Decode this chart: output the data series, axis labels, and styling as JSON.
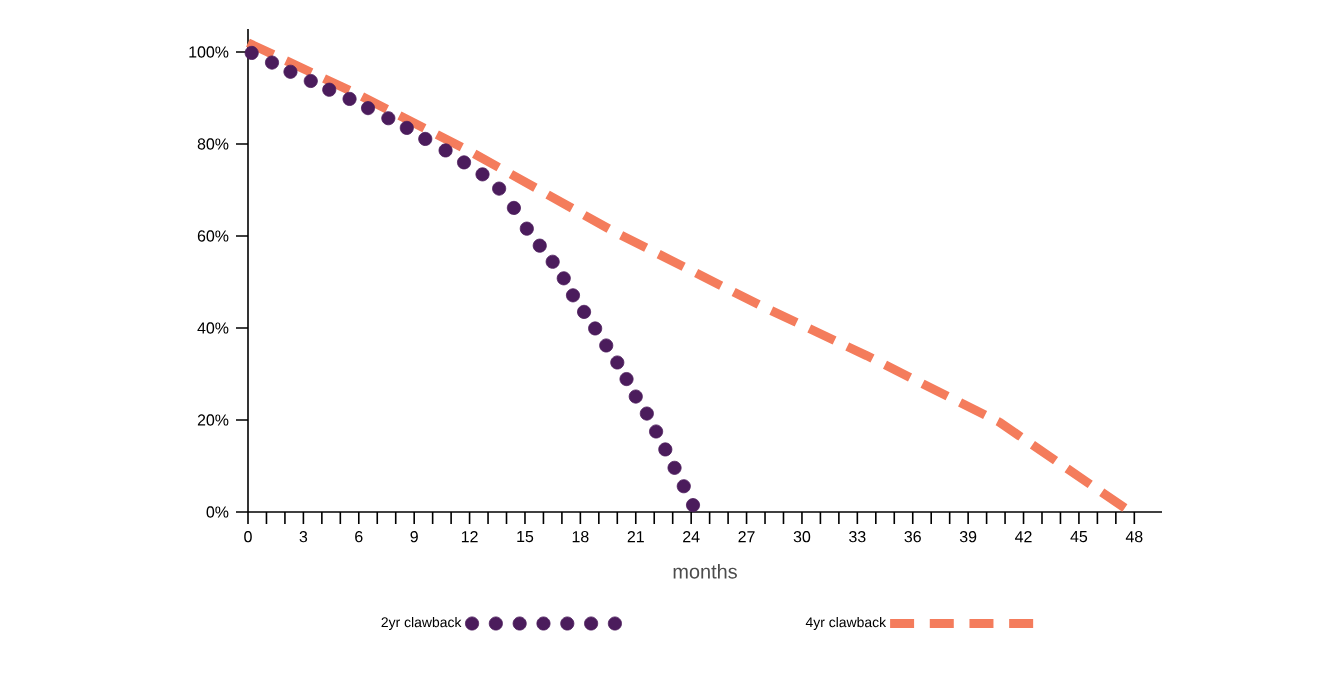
{
  "chart_data": {
    "type": "line",
    "xlabel": "months",
    "xlim": [
      0,
      49.5
    ],
    "ylim": [
      0,
      105
    ],
    "legend": "bottom",
    "xticks": [
      0,
      {
        "value": 1,
        "label": null
      },
      {
        "value": 2,
        "label": null
      },
      3,
      {
        "value": 4,
        "label": null
      },
      {
        "value": 5,
        "label": null
      },
      6,
      {
        "value": 7,
        "label": null
      },
      {
        "value": 8,
        "label": null
      },
      9,
      {
        "value": 10,
        "label": null
      },
      {
        "value": 11,
        "label": null
      },
      12,
      {
        "value": 13,
        "label": null
      },
      {
        "value": 14,
        "label": null
      },
      15,
      {
        "value": 16,
        "label": null
      },
      {
        "value": 17,
        "label": null
      },
      18,
      {
        "value": 19,
        "label": null
      },
      {
        "value": 20,
        "label": null
      },
      21,
      {
        "value": 22,
        "label": null
      },
      {
        "value": 23,
        "label": null
      },
      24,
      {
        "value": 25,
        "label": null
      },
      {
        "value": 26,
        "label": null
      },
      27,
      {
        "value": 28,
        "label": null
      },
      {
        "value": 29,
        "label": null
      },
      30,
      {
        "value": 31,
        "label": null
      },
      {
        "value": 32,
        "label": null
      },
      33,
      {
        "value": 34,
        "label": null
      },
      {
        "value": 35,
        "label": null
      },
      36,
      {
        "value": 37,
        "label": null
      },
      {
        "value": 38,
        "label": null
      },
      39,
      {
        "value": 40,
        "label": null
      },
      {
        "value": 41,
        "label": null
      },
      42,
      {
        "value": 43,
        "label": null
      },
      {
        "value": 44,
        "label": null
      },
      45,
      {
        "value": 46,
        "label": null
      },
      {
        "value": 47,
        "label": null
      },
      48
    ],
    "yticks": [
      {
        "value": 0,
        "label": "0%"
      },
      {
        "value": 20,
        "label": "20%"
      },
      {
        "value": 40,
        "label": "40%"
      },
      {
        "value": 60,
        "label": "60%"
      },
      {
        "value": 80,
        "label": "80%"
      },
      {
        "value": 100,
        "label": "100%"
      }
    ],
    "series": [
      {
        "name": "2yr clawback",
        "type": "scatter",
        "marker": "circle",
        "color": "#4b1c5c",
        "x": [
          0.2,
          1.3,
          2.3,
          3.4,
          4.4,
          5.5,
          6.5,
          7.6,
          8.6,
          9.6,
          10.7,
          11.7,
          12.7,
          13.6,
          14.4,
          15.1,
          15.8,
          16.5,
          17.1,
          17.6,
          18.2,
          18.8,
          19.4,
          20.0,
          20.5,
          21.0,
          21.6,
          22.1,
          22.6,
          23.1,
          23.6,
          24.1
        ],
        "values": [
          99.8,
          97.7,
          95.7,
          93.7,
          91.8,
          89.8,
          87.8,
          85.6,
          83.5,
          81.1,
          78.6,
          76.0,
          73.4,
          70.3,
          66.1,
          61.6,
          57.9,
          54.4,
          50.8,
          47.1,
          43.5,
          39.9,
          36.2,
          32.5,
          28.9,
          25.1,
          21.4,
          17.5,
          13.6,
          9.6,
          5.6,
          1.5
        ]
      },
      {
        "name": "4yr clawback",
        "line_style": "dashed",
        "color": "#f47c5c",
        "x": [
          0,
          6,
          12.2,
          19.8,
          27.7,
          33.5,
          40.7,
          47.8
        ],
        "values": [
          102,
          90.7,
          78,
          61,
          45,
          34,
          19.5,
          0
        ]
      }
    ]
  }
}
